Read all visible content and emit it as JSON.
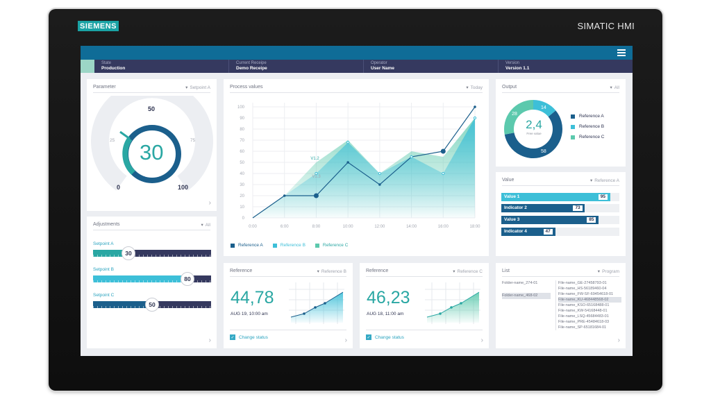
{
  "device": {
    "brand": "SIEMENS",
    "model": "SIMATIC HMI"
  },
  "status": [
    {
      "label": "State",
      "value": "Production"
    },
    {
      "label": "Current Receipe",
      "value": "Demo Receipe"
    },
    {
      "label": "Operator",
      "value": "User Name"
    },
    {
      "label": "Version",
      "value": "Version 1.1"
    }
  ],
  "parameter": {
    "title": "Parameter",
    "filter": "Setpoint A",
    "value": "30",
    "scale": {
      "min": "0",
      "q1": "25",
      "mid": "50",
      "q3": "75",
      "max": "100"
    }
  },
  "adjustments": {
    "title": "Adjustments",
    "filter": "All",
    "items": [
      {
        "label": "Setpoint A",
        "value": 30,
        "display": "30",
        "color": "#2aa7a3"
      },
      {
        "label": "Setpoint B",
        "value": 80,
        "display": "80",
        "color": "#3dbfd8"
      },
      {
        "label": "Setpoint C",
        "value": 50,
        "display": "50",
        "color": "#1b5f8c"
      }
    ]
  },
  "process": {
    "title": "Process values",
    "filter": "Today",
    "legend": [
      {
        "name": "Reference A",
        "color": "#1b5f8c"
      },
      {
        "name": "Reference B",
        "color": "#3dbfd8"
      },
      {
        "name": "Reference C",
        "color": "#5cc9ad"
      }
    ],
    "annotations": [
      "V1.2",
      "V1.3"
    ]
  },
  "chart_data": {
    "type": "area",
    "x": [
      "0:00",
      "6:00",
      "8:00",
      "10:00",
      "12:00",
      "14:00",
      "16:00",
      "18:00"
    ],
    "yticks": [
      0,
      10,
      20,
      30,
      40,
      50,
      60,
      70,
      80,
      90,
      100
    ],
    "ylim": [
      0,
      100
    ],
    "series": [
      {
        "name": "Reference A",
        "values": [
          0,
          20,
          20,
          50,
          30,
          55,
          60,
          100
        ]
      },
      {
        "name": "Reference B",
        "values": [
          0,
          20,
          40,
          68,
          40,
          55,
          40,
          90
        ]
      },
      {
        "name": "Reference C",
        "values": [
          0,
          20,
          50,
          70,
          40,
          60,
          55,
          90
        ]
      }
    ]
  },
  "output": {
    "title": "Output",
    "filter": "All",
    "center": "2,4",
    "center_sub": "Free value",
    "slices": [
      {
        "name": "Reference A",
        "value": 58,
        "color": "#1b5f8c"
      },
      {
        "name": "Reference B",
        "value": 14,
        "color": "#3dbfd8"
      },
      {
        "name": "Reference C",
        "value": 28,
        "color": "#5cc9ad"
      }
    ]
  },
  "values_panel": {
    "title": "Value",
    "filter": "Reference A",
    "bars": [
      {
        "name": "Value 1",
        "value": 95,
        "display": "95",
        "color": "#3dbfd8"
      },
      {
        "name": "Indicator 2",
        "value": 73,
        "display": "73",
        "color": "#1b5f8c"
      },
      {
        "name": "Value 3",
        "value": 85,
        "display": "85",
        "color": "#1b5f8c"
      },
      {
        "name": "Indicator 4",
        "value": 47,
        "display": "47",
        "color": "#1b5f8c"
      }
    ]
  },
  "ref_b": {
    "title": "Reference",
    "filter": "Reference B",
    "value": "44,78",
    "date": "AUG 19, 10:00 am",
    "check": "Change status"
  },
  "ref_c": {
    "title": "Reference",
    "filter": "Reference C",
    "value": "46,23",
    "date": "AUG 18, 11:00 am",
    "check": "Change status"
  },
  "list": {
    "title": "List",
    "filter": "Program",
    "folders": [
      "Folder-name_274-01",
      "Folder-name_468-02"
    ],
    "files": [
      "File-name_GE-27458793-01",
      "File-name_HS-56189460-04",
      "File-name_FW-SF-69454618-01",
      "File-name_KU-468448568-02",
      "File-name_KSO-65168488-01",
      "File-name_KW-54168448-01",
      "File-name_LSQ-45684483-01",
      "File-name_PRE-45484618-03",
      "File-name_SP-65181684-01"
    ]
  }
}
